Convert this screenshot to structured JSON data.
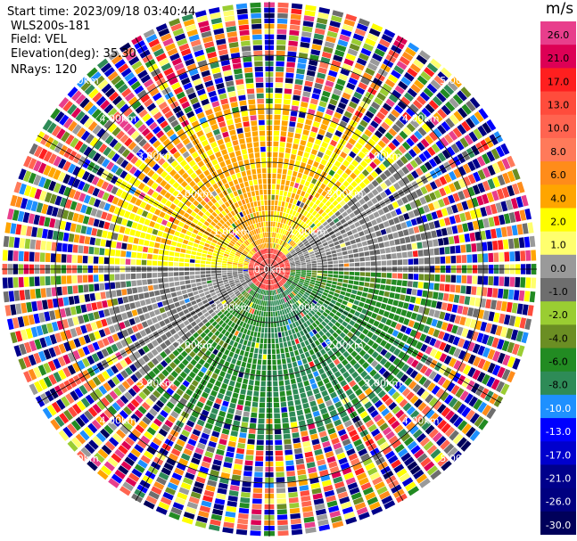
{
  "header": {
    "start_time": "Start time: 2023/09/18 03:40:44",
    "instrument": "WLS200s-181",
    "field": "Field: VEL",
    "elevation": "Elevation(deg): 35.30",
    "nrays": "NRays: 120"
  },
  "colorbar": {
    "unit": "m/s",
    "levels": [
      {
        "label": "26.0",
        "color": "#e83e8c"
      },
      {
        "label": "21.0",
        "color": "#dd0055"
      },
      {
        "label": "17.0",
        "color": "#ff1f1f"
      },
      {
        "label": "13.0",
        "color": "#ff4c3c"
      },
      {
        "label": "10.0",
        "color": "#ff6450"
      },
      {
        "label": "8.0",
        "color": "#ff7a5a"
      },
      {
        "label": "6.0",
        "color": "#ff8c1a"
      },
      {
        "label": "4.0",
        "color": "#ffa500"
      },
      {
        "label": "2.0",
        "color": "#ffff00"
      },
      {
        "label": "1.0",
        "color": "#ffff6e"
      },
      {
        "label": "0.0",
        "color": "#9a9a9a"
      },
      {
        "label": "-1.0",
        "color": "#6e6e6e"
      },
      {
        "label": "-2.0",
        "color": "#9acd32"
      },
      {
        "label": "-4.0",
        "color": "#6b8e23"
      },
      {
        "label": "-6.0",
        "color": "#228b22"
      },
      {
        "label": "-8.0",
        "color": "#2e8b57"
      },
      {
        "label": "-10.0",
        "color": "#1e90ff"
      },
      {
        "label": "-13.0",
        "color": "#0000ff"
      },
      {
        "label": "-17.0",
        "color": "#0000cd"
      },
      {
        "label": "-21.0",
        "color": "#00008b"
      },
      {
        "label": "-26.0",
        "color": "#000080"
      },
      {
        "label": "-30.0",
        "color": "#00005a"
      }
    ]
  },
  "chart_data": {
    "type": "heatmap",
    "projection": "polar (PPI)",
    "field": "VEL",
    "unit": "m/s",
    "rays": 120,
    "range_rings_km": [
      1.0,
      2.0,
      3.0,
      4.0,
      5.0
    ],
    "range_ring_labels": [
      "1.00km",
      "2.00km",
      "3.00km",
      "4.00km",
      "5.00km"
    ],
    "ring_labels_shown": [
      {
        "label": "0.0km",
        "ring_km": 0.0
      },
      {
        "label": "1.00km",
        "ring_km": 1.0
      },
      {
        "label": "2.00km",
        "ring_km": 2.0
      },
      {
        "label": "3.00km",
        "ring_km": 3.0
      },
      {
        "label": "4.00km",
        "ring_km": 4.0
      },
      {
        "label": "5.00km",
        "ring_km": 5.0
      }
    ],
    "spoke_azimuths_deg": [
      0,
      30,
      60,
      90,
      120,
      150,
      180,
      210,
      240,
      270,
      300,
      330
    ],
    "max_range_km": 5.0,
    "velocity_pattern": {
      "inner_core_km": 0.4,
      "inner_core_value": 17.0,
      "toward_sector_center_az_deg": 340,
      "toward_peak": 5.0,
      "away_sector_center_az_deg": 160,
      "away_peak": -7.0,
      "noisy_beyond_km": 3.0
    },
    "grid": true
  }
}
